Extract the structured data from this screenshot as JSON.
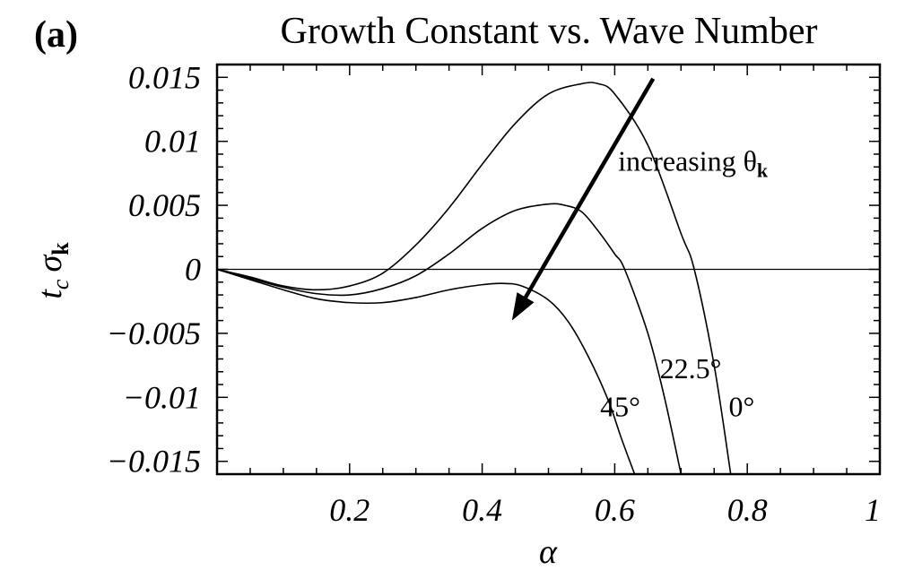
{
  "panel_label": "(a)",
  "chart_data": {
    "type": "line",
    "title": "Growth Constant vs. Wave Number",
    "xlabel": "α",
    "ylabel_main": "t",
    "ylabel_sub": "c",
    "ylabel_sigma": "σ",
    "ylabel_sigma_sub": "k",
    "xlim": [
      0,
      1
    ],
    "ylim": [
      -0.016,
      0.016
    ],
    "x_ticks": [
      {
        "value": 0.2,
        "label": "0.2"
      },
      {
        "value": 0.4,
        "label": "0.4"
      },
      {
        "value": 0.6,
        "label": "0.6"
      },
      {
        "value": 0.8,
        "label": "0.8"
      },
      {
        "value": 1.0,
        "label": "1"
      }
    ],
    "y_ticks": [
      {
        "value": 0.015,
        "label": "0.015"
      },
      {
        "value": 0.01,
        "label": "0.01"
      },
      {
        "value": 0.005,
        "label": "0.005"
      },
      {
        "value": 0,
        "label": "0"
      },
      {
        "value": -0.005,
        "label": "−0.005"
      },
      {
        "value": -0.01,
        "label": "−0.01"
      },
      {
        "value": -0.015,
        "label": "−0.015"
      }
    ],
    "grid": false,
    "zero_line": true,
    "series": [
      {
        "name": "0°",
        "x": [
          0,
          0.05,
          0.1,
          0.15,
          0.2,
          0.25,
          0.3,
          0.35,
          0.4,
          0.45,
          0.5,
          0.55,
          0.575,
          0.6,
          0.65,
          0.7,
          0.72,
          0.75,
          0.775
        ],
        "y": [
          0,
          -0.0006,
          -0.0013,
          -0.0016,
          -0.0013,
          -0.0003,
          0.0019,
          0.0048,
          0.0082,
          0.0114,
          0.0137,
          0.0145,
          0.0145,
          0.0137,
          0.0097,
          0.0028,
          0.0,
          -0.0075,
          -0.016
        ]
      },
      {
        "name": "22.5°",
        "x": [
          0,
          0.05,
          0.1,
          0.15,
          0.2,
          0.25,
          0.3,
          0.35,
          0.4,
          0.45,
          0.5,
          0.525,
          0.55,
          0.575,
          0.6,
          0.615,
          0.65,
          0.675,
          0.7
        ],
        "y": [
          0,
          -0.0007,
          -0.0014,
          -0.0019,
          -0.002,
          -0.0015,
          -0.0005,
          0.0012,
          0.0032,
          0.0046,
          0.0051,
          0.005,
          0.0045,
          0.003,
          0.0012,
          0.0,
          -0.005,
          -0.01,
          -0.016
        ]
      },
      {
        "name": "45°",
        "x": [
          0,
          0.05,
          0.1,
          0.15,
          0.2,
          0.25,
          0.3,
          0.35,
          0.4,
          0.43,
          0.46,
          0.5,
          0.53,
          0.56,
          0.59,
          0.61,
          0.63
        ],
        "y": [
          0,
          -0.0008,
          -0.0016,
          -0.0023,
          -0.0026,
          -0.0026,
          -0.0022,
          -0.0016,
          -0.0012,
          -0.0011,
          -0.0013,
          -0.0024,
          -0.0041,
          -0.0068,
          -0.0102,
          -0.0132,
          -0.016
        ]
      }
    ],
    "curve_labels": [
      {
        "text": "0°",
        "x": 0.772,
        "y": -0.0115
      },
      {
        "text": "22.5°",
        "x": 0.668,
        "y": -0.0085
      },
      {
        "text": "45°",
        "x": 0.578,
        "y": -0.0115
      }
    ],
    "annotation": {
      "text": "increasing θ",
      "sub": "k",
      "x": 0.605,
      "y": 0.0077,
      "arrow_from": [
        0.658,
        0.0149
      ],
      "arrow_to": [
        0.445,
        -0.004
      ]
    }
  }
}
